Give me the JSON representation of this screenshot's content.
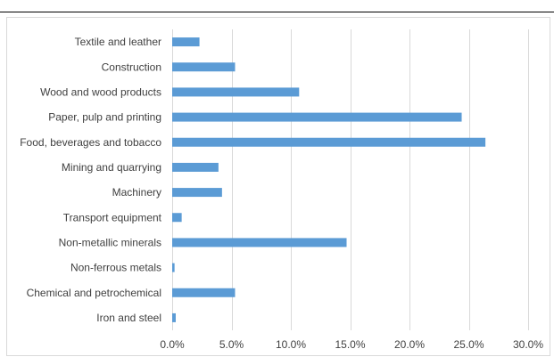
{
  "chart_data": {
    "type": "bar",
    "orientation": "horizontal",
    "categories": [
      "Textile and leather",
      "Construction",
      "Wood and wood products",
      "Paper, pulp and printing",
      "Food, beverages and tobacco",
      "Mining and quarrying",
      "Machinery",
      "Transport equipment",
      "Non-metallic minerals",
      "Non-ferrous metals",
      "Chemical and petrochemical",
      "Iron and steel"
    ],
    "values": [
      2.3,
      5.3,
      10.7,
      24.4,
      26.4,
      3.9,
      4.2,
      0.8,
      14.7,
      0.2,
      5.3,
      0.3
    ],
    "xlim": [
      0,
      30
    ],
    "xticks": [
      "0.0%",
      "5.0%",
      "10.0%",
      "15.0%",
      "20.0%",
      "25.0%",
      "30.0%"
    ],
    "xtick_values": [
      0,
      5,
      10,
      15,
      20,
      25,
      30
    ],
    "unit": "%",
    "grid": "vertical",
    "colors": {
      "bar": "#5b9bd5",
      "grid": "#d9d9d9",
      "text": "#404040"
    }
  }
}
